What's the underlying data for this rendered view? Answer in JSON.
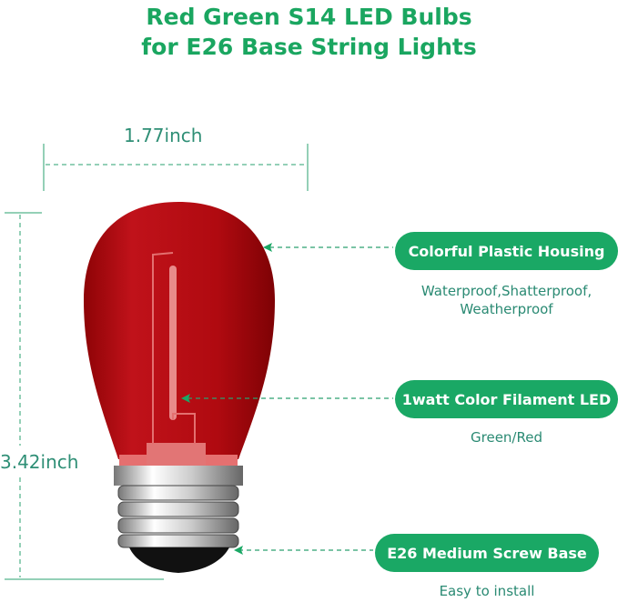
{
  "title": {
    "line1": "Red Green S14 LED Bulbs",
    "line2": "for E26 Base String Lights"
  },
  "dimensions": {
    "width": "1.77inch",
    "height": "3.42inch"
  },
  "callouts": [
    {
      "label": "Colorful Plastic Housing",
      "sub1": "Waterproof,Shatterproof,",
      "sub2": "Weatherproof"
    },
    {
      "label": "1watt Color Filament LED",
      "sub1": "Green/Red"
    },
    {
      "label": "E26 Medium Screw Base",
      "sub1": "Easy to install"
    }
  ],
  "colors": {
    "accent": "#1aa865",
    "bulb": "#b8080c"
  }
}
